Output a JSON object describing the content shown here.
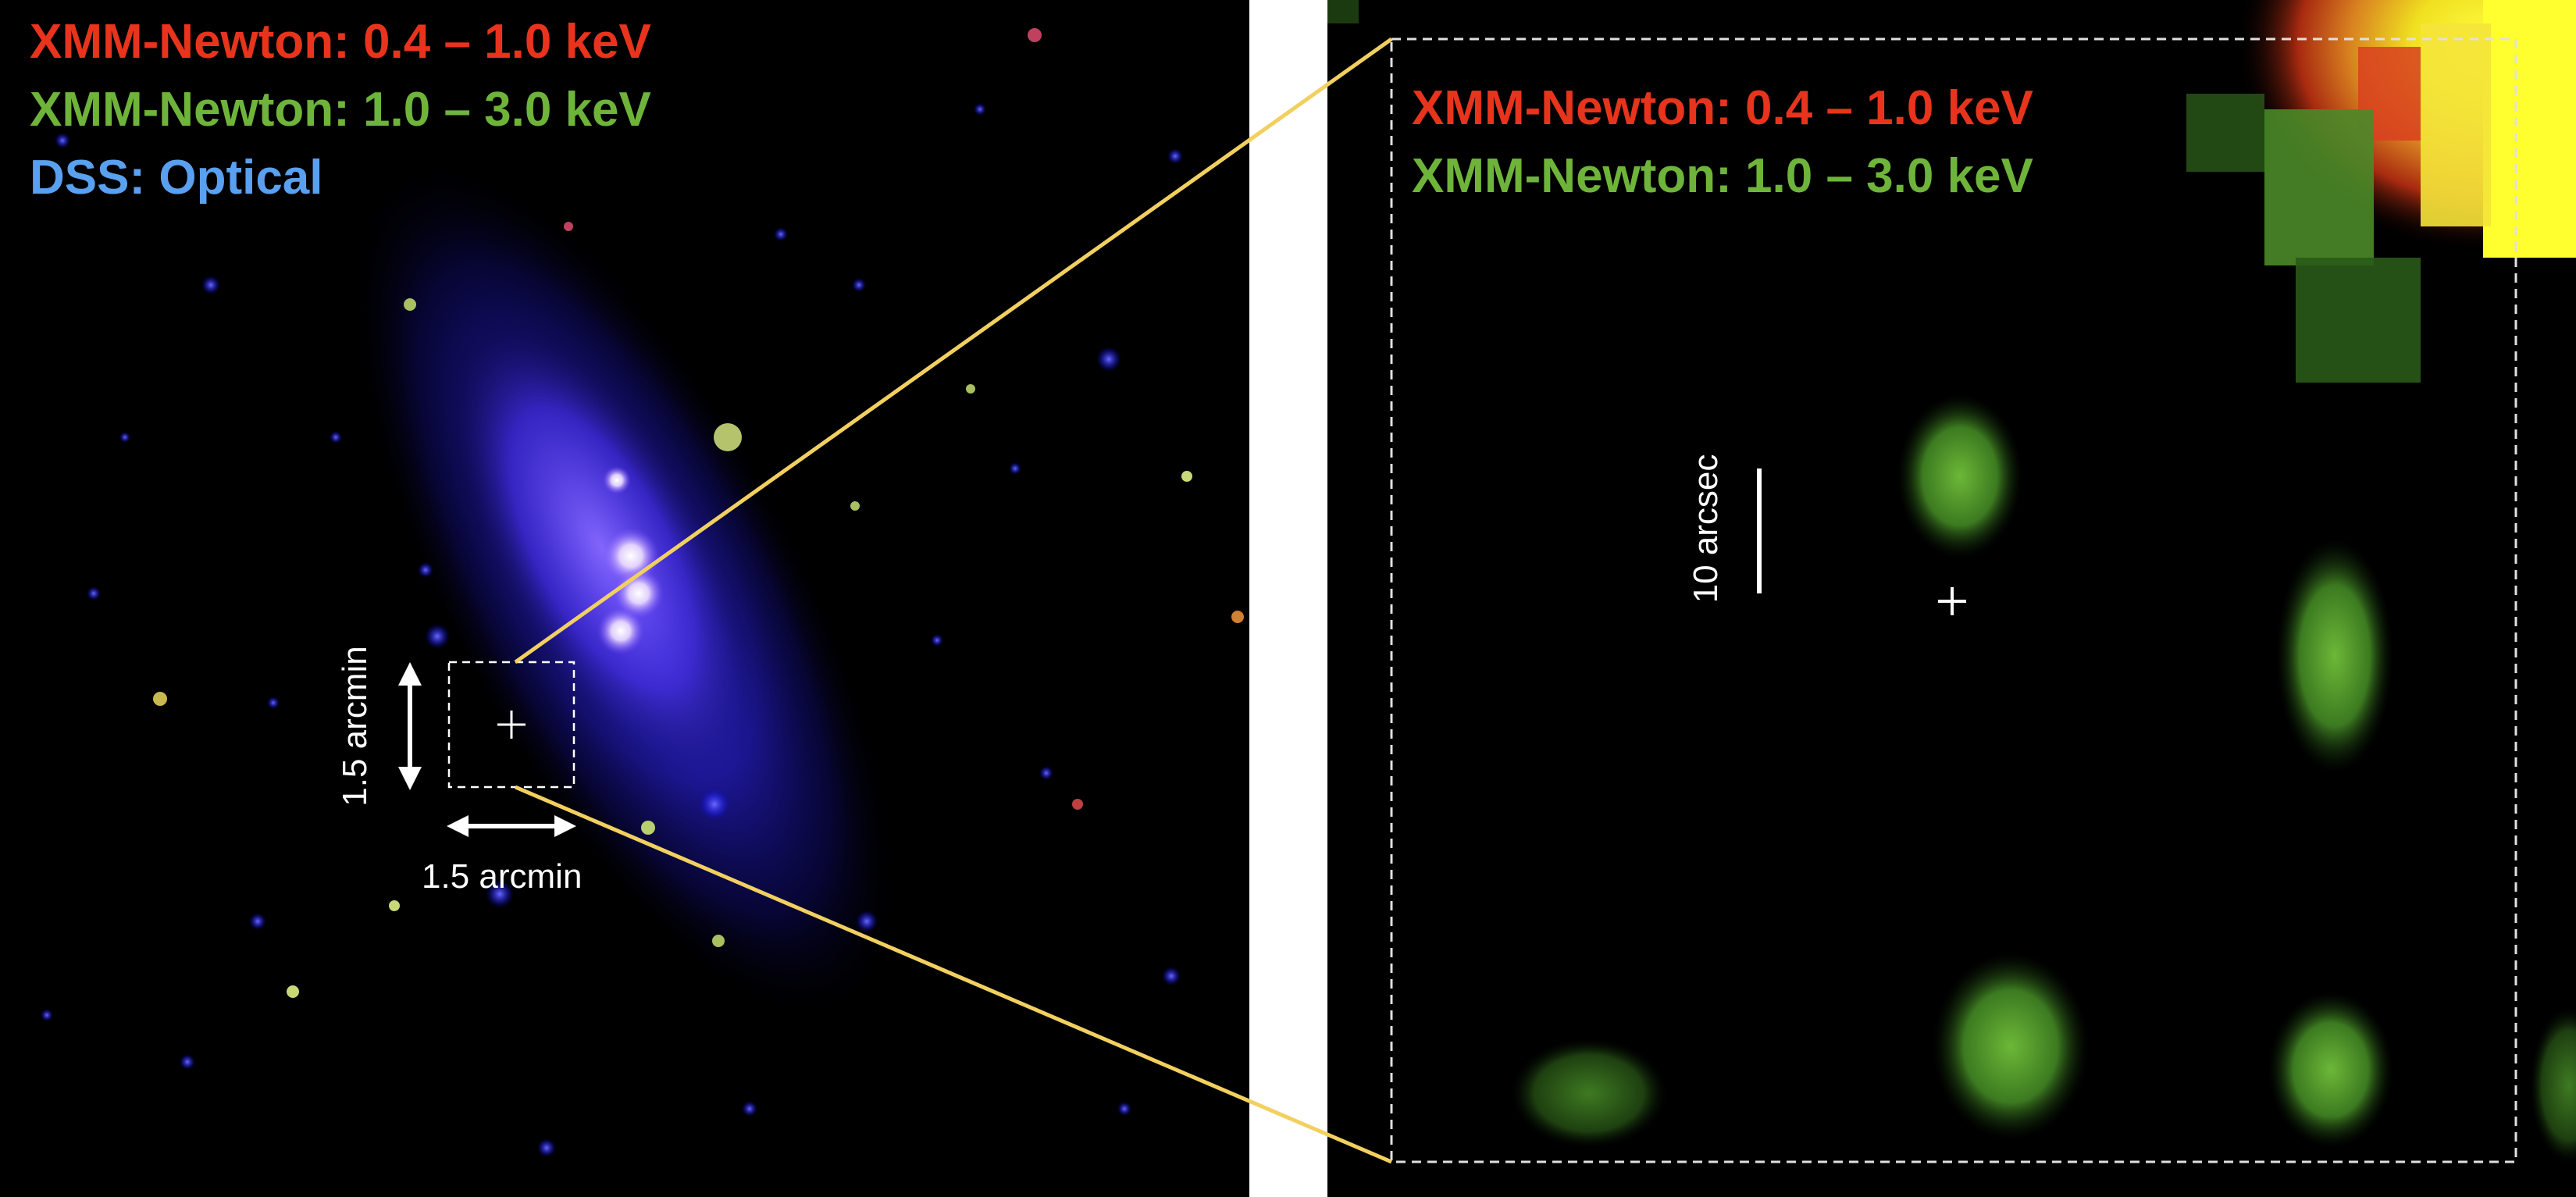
{
  "left_panel": {
    "legend": {
      "red_label": "XMM-Newton: 0.4 – 1.0 keV",
      "green_label": "XMM-Newton: 1.0 – 3.0 keV",
      "blue_label": "DSS: Optical"
    },
    "scale_vertical_label": "1.5 arcmin",
    "scale_horizontal_label": "1.5 arcmin"
  },
  "right_panel": {
    "legend": {
      "red_label": "XMM-Newton: 0.4 – 1.0 keV",
      "green_label": "XMM-Newton: 1.0 – 3.0 keV"
    },
    "scale_label": "10 arcsec"
  },
  "colors": {
    "red_band": "#e8341c",
    "green_band": "#6fb43a",
    "blue_band": "#5aa0f0",
    "zoom_lines": "#f2d060",
    "background": "#000000",
    "separator": "#ffffff"
  }
}
